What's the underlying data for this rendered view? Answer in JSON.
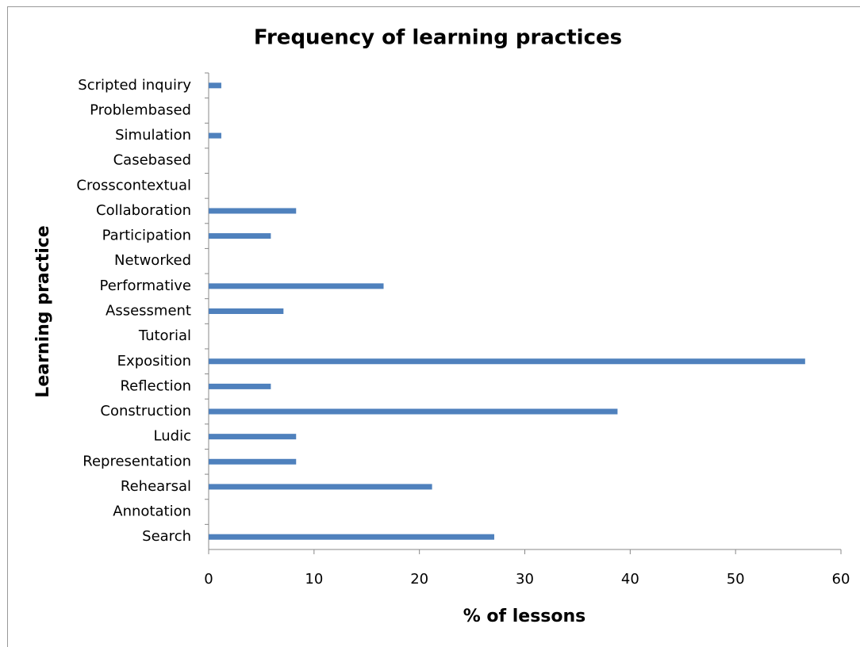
{
  "chart_data": {
    "type": "barh",
    "title": "Frequency of learning practices",
    "xlabel": "% of lessons",
    "ylabel": "Learning practice",
    "categories": [
      "Scripted inquiry",
      "Problembased",
      "Simulation",
      "Casebased",
      "Crosscontextual",
      "Collaboration",
      "Participation",
      "Networked",
      "Performative",
      "Assessment",
      "Tutorial",
      "Exposition",
      "Reflection",
      "Construction",
      "Ludic",
      "Representation",
      "Rehearsal",
      "Annotation",
      "Search"
    ],
    "values": [
      1.2,
      0,
      1.2,
      0,
      0,
      8.3,
      5.9,
      0,
      16.6,
      7.1,
      0,
      56.6,
      5.9,
      38.8,
      8.3,
      8.3,
      21.2,
      0,
      27.1
    ],
    "color": "#4f81bd",
    "xlim": [
      0,
      60
    ],
    "xticks": [
      0,
      10,
      20,
      30,
      40,
      50,
      60
    ],
    "grid": false
  }
}
